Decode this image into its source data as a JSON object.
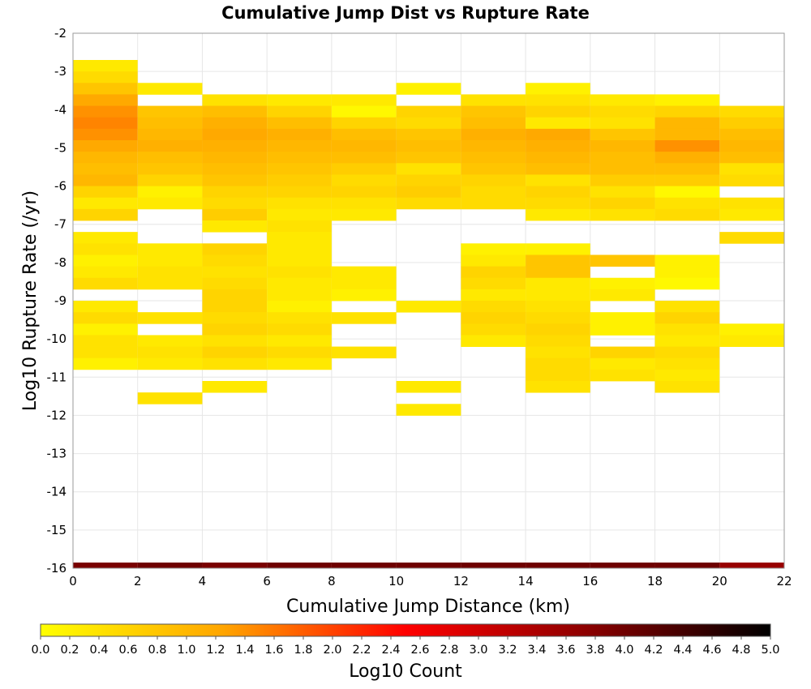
{
  "chart_data": {
    "type": "heatmap",
    "title": "Cumulative Jump Dist vs Rupture Rate",
    "xlabel": "Cumulative Jump Distance (km)",
    "ylabel": "Log10 Rupture Rate (/yr)",
    "xlim": [
      0,
      22
    ],
    "ylim": [
      -16,
      -2
    ],
    "x_ticks": [
      "0",
      "2",
      "4",
      "6",
      "8",
      "10",
      "12",
      "14",
      "16",
      "18",
      "20",
      "22"
    ],
    "y_ticks": [
      "-2",
      "-3",
      "-4",
      "-5",
      "-6",
      "-7",
      "-8",
      "-9",
      "-10",
      "-11",
      "-12",
      "-13",
      "-14",
      "-15",
      "-16"
    ],
    "x_bin_width": 2,
    "y_bin_height": 0.3,
    "colorbar": {
      "label": "Log10 Count",
      "range": [
        0,
        5
      ],
      "ticks": [
        "0.0",
        "0.2",
        "0.4",
        "0.6",
        "0.8",
        "1.0",
        "1.2",
        "1.4",
        "1.6",
        "1.8",
        "2.0",
        "2.2",
        "2.4",
        "2.6",
        "2.8",
        "3.0",
        "3.2",
        "3.4",
        "3.6",
        "3.8",
        "4.0",
        "4.2",
        "4.4",
        "4.6",
        "4.8",
        "5.0"
      ],
      "colors": [
        "#ffff00",
        "#ffa500",
        "#ff0000",
        "#8b0000",
        "#000000"
      ]
    },
    "cells_note": "x = left edge of bin (km), y = lower edge of bin (log10 rate), z = log10 count",
    "cells": [
      [
        0,
        -3.0,
        0.3
      ],
      [
        0,
        -3.3,
        0.5
      ],
      [
        0,
        -3.6,
        0.8
      ],
      [
        0,
        -3.9,
        1.2
      ],
      [
        0,
        -4.2,
        1.4
      ],
      [
        0,
        -4.5,
        1.5
      ],
      [
        0,
        -4.8,
        1.4
      ],
      [
        0,
        -5.1,
        1.2
      ],
      [
        0,
        -5.4,
        1.0
      ],
      [
        0,
        -5.7,
        0.9
      ],
      [
        0,
        -6.0,
        1.0
      ],
      [
        0,
        -6.3,
        0.6
      ],
      [
        0,
        -6.6,
        0.3
      ],
      [
        0,
        -6.9,
        0.6
      ],
      [
        0,
        -7.5,
        0.3
      ],
      [
        0,
        -7.8,
        0.4
      ],
      [
        0,
        -8.1,
        0.2
      ],
      [
        0,
        -8.4,
        0.3
      ],
      [
        0,
        -8.7,
        0.5
      ],
      [
        0,
        -9.3,
        0.3
      ],
      [
        0,
        -9.6,
        0.5
      ],
      [
        0,
        -9.9,
        0.2
      ],
      [
        0,
        -10.2,
        0.4
      ],
      [
        0,
        -10.5,
        0.4
      ],
      [
        0,
        -10.8,
        0.2
      ],
      [
        2,
        -3.6,
        0.3
      ],
      [
        2,
        -4.2,
        0.8
      ],
      [
        2,
        -4.5,
        0.9
      ],
      [
        2,
        -4.8,
        1.0
      ],
      [
        2,
        -5.1,
        1.1
      ],
      [
        2,
        -5.4,
        0.9
      ],
      [
        2,
        -5.7,
        0.8
      ],
      [
        2,
        -6.0,
        0.6
      ],
      [
        2,
        -6.3,
        0.2
      ],
      [
        2,
        -6.6,
        0.3
      ],
      [
        2,
        -7.8,
        0.3
      ],
      [
        2,
        -8.1,
        0.3
      ],
      [
        2,
        -8.4,
        0.4
      ],
      [
        2,
        -8.7,
        0.4
      ],
      [
        2,
        -9.6,
        0.4
      ],
      [
        2,
        -10.2,
        0.3
      ],
      [
        2,
        -10.5,
        0.4
      ],
      [
        2,
        -10.8,
        0.3
      ],
      [
        2,
        -11.7,
        0.4
      ],
      [
        4,
        -3.9,
        0.4
      ],
      [
        4,
        -4.2,
        0.9
      ],
      [
        4,
        -4.5,
        1.1
      ],
      [
        4,
        -4.8,
        1.2
      ],
      [
        4,
        -5.1,
        1.1
      ],
      [
        4,
        -5.4,
        1.0
      ],
      [
        4,
        -5.7,
        0.9
      ],
      [
        4,
        -6.0,
        0.8
      ],
      [
        4,
        -6.3,
        0.6
      ],
      [
        4,
        -6.6,
        0.5
      ],
      [
        4,
        -6.9,
        0.7
      ],
      [
        4,
        -7.2,
        0.3
      ],
      [
        4,
        -7.8,
        0.6
      ],
      [
        4,
        -8.1,
        0.5
      ],
      [
        4,
        -8.4,
        0.4
      ],
      [
        4,
        -8.7,
        0.5
      ],
      [
        4,
        -9.0,
        0.6
      ],
      [
        4,
        -9.3,
        0.6
      ],
      [
        4,
        -9.6,
        0.5
      ],
      [
        4,
        -9.9,
        0.6
      ],
      [
        4,
        -10.2,
        0.4
      ],
      [
        4,
        -10.5,
        0.6
      ],
      [
        4,
        -10.8,
        0.4
      ],
      [
        4,
        -11.4,
        0.3
      ],
      [
        6,
        -3.9,
        0.3
      ],
      [
        6,
        -4.2,
        0.6
      ],
      [
        6,
        -4.5,
        0.9
      ],
      [
        6,
        -4.8,
        1.1
      ],
      [
        6,
        -5.1,
        1.0
      ],
      [
        6,
        -5.4,
        0.9
      ],
      [
        6,
        -5.7,
        0.8
      ],
      [
        6,
        -6.0,
        0.7
      ],
      [
        6,
        -6.3,
        0.6
      ],
      [
        6,
        -6.6,
        0.4
      ],
      [
        6,
        -6.9,
        0.3
      ],
      [
        6,
        -7.2,
        0.4
      ],
      [
        6,
        -7.5,
        0.3
      ],
      [
        6,
        -7.8,
        0.3
      ],
      [
        6,
        -8.1,
        0.3
      ],
      [
        6,
        -8.4,
        0.4
      ],
      [
        6,
        -8.7,
        0.3
      ],
      [
        6,
        -9.0,
        0.3
      ],
      [
        6,
        -9.3,
        0.2
      ],
      [
        6,
        -9.6,
        0.4
      ],
      [
        6,
        -9.9,
        0.5
      ],
      [
        6,
        -10.2,
        0.3
      ],
      [
        6,
        -10.5,
        0.5
      ],
      [
        6,
        -10.8,
        0.3
      ],
      [
        8,
        -3.9,
        0.3
      ],
      [
        8,
        -4.2,
        0.1
      ],
      [
        8,
        -4.5,
        0.6
      ],
      [
        8,
        -4.8,
        0.9
      ],
      [
        8,
        -5.1,
        1.0
      ],
      [
        8,
        -5.4,
        0.9
      ],
      [
        8,
        -5.7,
        0.7
      ],
      [
        8,
        -6.0,
        0.5
      ],
      [
        8,
        -6.3,
        0.6
      ],
      [
        8,
        -6.6,
        0.4
      ],
      [
        8,
        -6.9,
        0.3
      ],
      [
        8,
        -8.4,
        0.3
      ],
      [
        8,
        -8.7,
        0.3
      ],
      [
        8,
        -9.0,
        0.2
      ],
      [
        8,
        -9.6,
        0.4
      ],
      [
        8,
        -10.5,
        0.4
      ],
      [
        10,
        -3.6,
        0.2
      ],
      [
        10,
        -4.2,
        0.6
      ],
      [
        10,
        -4.5,
        0.5
      ],
      [
        10,
        -4.8,
        0.8
      ],
      [
        10,
        -5.1,
        0.9
      ],
      [
        10,
        -5.4,
        0.8
      ],
      [
        10,
        -5.7,
        0.4
      ],
      [
        10,
        -6.0,
        0.6
      ],
      [
        10,
        -6.3,
        0.7
      ],
      [
        10,
        -6.6,
        0.5
      ],
      [
        10,
        -9.3,
        0.3
      ],
      [
        10,
        -11.4,
        0.3
      ],
      [
        10,
        -12.0,
        0.3
      ],
      [
        12,
        -3.9,
        0.4
      ],
      [
        12,
        -4.2,
        0.8
      ],
      [
        12,
        -4.5,
        0.9
      ],
      [
        12,
        -4.8,
        1.1
      ],
      [
        12,
        -5.1,
        1.0
      ],
      [
        12,
        -5.4,
        0.9
      ],
      [
        12,
        -5.7,
        0.8
      ],
      [
        12,
        -6.0,
        0.6
      ],
      [
        12,
        -6.3,
        0.5
      ],
      [
        12,
        -6.6,
        0.5
      ],
      [
        12,
        -7.8,
        0.2
      ],
      [
        12,
        -8.1,
        0.3
      ],
      [
        12,
        -8.4,
        0.6
      ],
      [
        12,
        -8.7,
        0.5
      ],
      [
        12,
        -9.0,
        0.3
      ],
      [
        12,
        -9.3,
        0.5
      ],
      [
        12,
        -9.6,
        0.6
      ],
      [
        12,
        -9.9,
        0.5
      ],
      [
        12,
        -10.2,
        0.3
      ],
      [
        14,
        -3.6,
        0.2
      ],
      [
        14,
        -3.9,
        0.4
      ],
      [
        14,
        -4.2,
        0.6
      ],
      [
        14,
        -4.5,
        0.3
      ],
      [
        14,
        -4.8,
        1.2
      ],
      [
        14,
        -5.1,
        1.1
      ],
      [
        14,
        -5.4,
        1.0
      ],
      [
        14,
        -5.7,
        0.9
      ],
      [
        14,
        -6.0,
        0.4
      ],
      [
        14,
        -6.3,
        0.6
      ],
      [
        14,
        -6.6,
        0.5
      ],
      [
        14,
        -6.9,
        0.3
      ],
      [
        14,
        -7.8,
        0.2
      ],
      [
        14,
        -8.1,
        0.8
      ],
      [
        14,
        -8.4,
        0.8
      ],
      [
        14,
        -8.7,
        0.3
      ],
      [
        14,
        -9.0,
        0.3
      ],
      [
        14,
        -9.3,
        0.4
      ],
      [
        14,
        -9.6,
        0.5
      ],
      [
        14,
        -9.9,
        0.6
      ],
      [
        14,
        -10.2,
        0.5
      ],
      [
        14,
        -10.5,
        0.4
      ],
      [
        14,
        -10.8,
        0.5
      ],
      [
        14,
        -11.1,
        0.5
      ],
      [
        14,
        -11.4,
        0.4
      ],
      [
        16,
        -3.9,
        0.3
      ],
      [
        16,
        -4.2,
        0.5
      ],
      [
        16,
        -4.5,
        0.4
      ],
      [
        16,
        -4.8,
        0.8
      ],
      [
        16,
        -5.1,
        1.0
      ],
      [
        16,
        -5.4,
        0.9
      ],
      [
        16,
        -5.7,
        0.9
      ],
      [
        16,
        -6.0,
        0.7
      ],
      [
        16,
        -6.3,
        0.4
      ],
      [
        16,
        -6.6,
        0.6
      ],
      [
        16,
        -6.9,
        0.4
      ],
      [
        16,
        -8.1,
        0.8
      ],
      [
        16,
        -8.7,
        0.2
      ],
      [
        16,
        -9.0,
        0.3
      ],
      [
        16,
        -9.6,
        0.2
      ],
      [
        16,
        -9.9,
        0.2
      ],
      [
        16,
        -10.5,
        0.6
      ],
      [
        16,
        -10.8,
        0.3
      ],
      [
        16,
        -11.1,
        0.4
      ],
      [
        18,
        -3.9,
        0.2
      ],
      [
        18,
        -4.2,
        0.6
      ],
      [
        18,
        -4.5,
        1.0
      ],
      [
        18,
        -4.8,
        1.0
      ],
      [
        18,
        -5.1,
        1.4
      ],
      [
        18,
        -5.4,
        1.1
      ],
      [
        18,
        -5.7,
        0.9
      ],
      [
        18,
        -6.0,
        0.7
      ],
      [
        18,
        -6.3,
        0.1
      ],
      [
        18,
        -6.6,
        0.4
      ],
      [
        18,
        -6.9,
        0.5
      ],
      [
        18,
        -8.1,
        0.2
      ],
      [
        18,
        -8.4,
        0.2
      ],
      [
        18,
        -8.7,
        0.1
      ],
      [
        18,
        -9.3,
        0.4
      ],
      [
        18,
        -9.6,
        0.6
      ],
      [
        18,
        -9.9,
        0.4
      ],
      [
        18,
        -10.2,
        0.3
      ],
      [
        18,
        -10.5,
        0.5
      ],
      [
        18,
        -10.8,
        0.4
      ],
      [
        18,
        -11.1,
        0.3
      ],
      [
        18,
        -11.4,
        0.4
      ],
      [
        20,
        -4.2,
        0.5
      ],
      [
        20,
        -4.5,
        0.7
      ],
      [
        20,
        -4.8,
        0.9
      ],
      [
        20,
        -5.1,
        1.0
      ],
      [
        20,
        -5.4,
        0.9
      ],
      [
        20,
        -5.7,
        0.4
      ],
      [
        20,
        -6.0,
        0.5
      ],
      [
        20,
        -6.6,
        0.4
      ],
      [
        20,
        -6.9,
        0.3
      ],
      [
        20,
        -7.5,
        0.5
      ],
      [
        20,
        -9.9,
        0.2
      ],
      [
        20,
        -10.2,
        0.3
      ]
    ],
    "bottom_band": [
      {
        "x0": 0,
        "x1": 2,
        "value": 3.9
      },
      {
        "x0": 2,
        "x1": 4,
        "value": 4.0
      },
      {
        "x0": 4,
        "x1": 6,
        "value": 3.9
      },
      {
        "x0": 6,
        "x1": 8,
        "value": 4.0
      },
      {
        "x0": 8,
        "x1": 10,
        "value": 4.0
      },
      {
        "x0": 10,
        "x1": 12,
        "value": 4.0
      },
      {
        "x0": 12,
        "x1": 14,
        "value": 4.0
      },
      {
        "x0": 14,
        "x1": 16,
        "value": 4.0
      },
      {
        "x0": 16,
        "x1": 18,
        "value": 4.0
      },
      {
        "x0": 18,
        "x1": 20,
        "value": 4.0
      },
      {
        "x0": 20,
        "x1": 22,
        "value": 3.6
      }
    ]
  }
}
